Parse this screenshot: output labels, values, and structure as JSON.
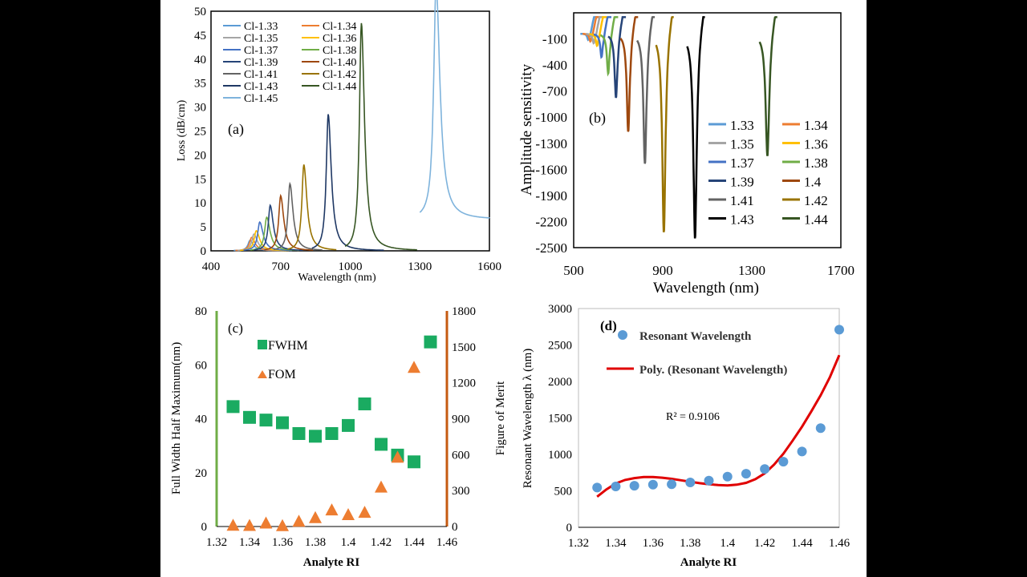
{
  "chart_data": [
    {
      "panel": "(a)",
      "type": "line",
      "xlabel": "Wavelength (nm)",
      "ylabel": "Loss (dB/cm)",
      "xlim": [
        400,
        1600
      ],
      "ylim": [
        0,
        50
      ],
      "xticks": [
        400,
        700,
        1000,
        1300,
        1600
      ],
      "yticks": [
        0,
        5,
        10,
        15,
        20,
        25,
        30,
        35,
        40,
        45,
        50
      ],
      "legend_position": "top-left",
      "series": [
        {
          "name": "Cl-1.33",
          "color": "#5b9bd5",
          "peak_x": 568,
          "peak_y": 2.2,
          "width": 22
        },
        {
          "name": "Cl-1.34",
          "color": "#ed7d31",
          "peak_x": 575,
          "peak_y": 2.8,
          "width": 22
        },
        {
          "name": "Cl-1.35",
          "color": "#a5a5a5",
          "peak_x": 585,
          "peak_y": 3.5,
          "width": 22
        },
        {
          "name": "Cl-1.36",
          "color": "#ffc000",
          "peak_x": 595,
          "peak_y": 4.2,
          "width": 22
        },
        {
          "name": "Cl-1.37",
          "color": "#4472c4",
          "peak_x": 610,
          "peak_y": 6,
          "width": 22
        },
        {
          "name": "Cl-1.38",
          "color": "#70ad47",
          "peak_x": 640,
          "peak_y": 7,
          "width": 22
        },
        {
          "name": "Cl-1.39",
          "color": "#264478",
          "peak_x": 655,
          "peak_y": 9.5,
          "width": 20
        },
        {
          "name": "Cl-1.40",
          "color": "#9e480e",
          "peak_x": 700,
          "peak_y": 11.5,
          "width": 20
        },
        {
          "name": "Cl-1.41",
          "color": "#636363",
          "peak_x": 740,
          "peak_y": 14,
          "width": 20
        },
        {
          "name": "Cl-1.42",
          "color": "#997300",
          "peak_x": 800,
          "peak_y": 18,
          "width": 20
        },
        {
          "name": "Cl-1.43",
          "color": "#1f3864",
          "peak_x": 905,
          "peak_y": 28.5,
          "width": 20
        },
        {
          "name": "Cl-1.44",
          "color": "#375623",
          "peak_x": 1048,
          "peak_y": 47.5,
          "width": 20
        },
        {
          "name": "Cl-1.45",
          "color": "#7eb3dc",
          "peak_x": 1370,
          "peak_y": 49,
          "width": 25
        }
      ]
    },
    {
      "panel": "(b)",
      "type": "line",
      "xlabel": "Wavelength (nm)",
      "ylabel": "Amplitude sensitivity",
      "xlim": [
        500,
        1700
      ],
      "ylim": [
        -2500,
        200
      ],
      "xticks": [
        500,
        900,
        1300,
        1700
      ],
      "yticks": [
        -100,
        -400,
        -700,
        -1000,
        -1300,
        -1600,
        -1900,
        -2200,
        -2500
      ],
      "legend_position": "bottom-right",
      "series": [
        {
          "name": "1.33",
          "color": "#5b9bd5",
          "dip_x": 565,
          "dip_y": -70
        },
        {
          "name": "1.34",
          "color": "#ed7d31",
          "dip_x": 575,
          "dip_y": -90
        },
        {
          "name": "1.35",
          "color": "#a5a5a5",
          "dip_x": 590,
          "dip_y": -110
        },
        {
          "name": "1.36",
          "color": "#ffc000",
          "dip_x": 605,
          "dip_y": -140
        },
        {
          "name": "1.37",
          "color": "#4472c4",
          "dip_x": 625,
          "dip_y": -270
        },
        {
          "name": "1.38",
          "color": "#70ad47",
          "dip_x": 655,
          "dip_y": -460
        },
        {
          "name": "1.39",
          "color": "#264478",
          "dip_x": 690,
          "dip_y": -740
        },
        {
          "name": "1.4",
          "color": "#9e480e",
          "dip_x": 745,
          "dip_y": -1130
        },
        {
          "name": "1.41",
          "color": "#636363",
          "dip_x": 820,
          "dip_y": -1500
        },
        {
          "name": "1.42",
          "color": "#997300",
          "dip_x": 905,
          "dip_y": -2290
        },
        {
          "name": "1.43",
          "color": "#000000",
          "dip_x": 1045,
          "dip_y": -2360
        },
        {
          "name": "1.44",
          "color": "#375623",
          "dip_x": 1370,
          "dip_y": -1410
        }
      ]
    },
    {
      "panel": "(c)",
      "type": "scatter",
      "xlabel": "Analyte RI",
      "ylabel": "Full Width Half Maximum(nm)",
      "ylabel_right": "Figure of Merit",
      "xlim": [
        1.32,
        1.46
      ],
      "ylim": [
        0,
        80
      ],
      "ylim_right": [
        0,
        1800
      ],
      "xticks": [
        1.32,
        1.34,
        1.36,
        1.38,
        1.4,
        1.42,
        1.44,
        1.46
      ],
      "yticks": [
        0,
        20,
        40,
        60,
        80
      ],
      "yticks_right": [
        0,
        300,
        600,
        900,
        1200,
        1500,
        1800
      ],
      "series": [
        {
          "name": "FWHM",
          "color": "#1aab61",
          "axis": "left",
          "x": [
            1.33,
            1.34,
            1.35,
            1.36,
            1.37,
            1.38,
            1.39,
            1.4,
            1.41,
            1.42,
            1.43,
            1.44,
            1.45
          ],
          "values": [
            44.5,
            40.5,
            39.5,
            38.5,
            34.5,
            33.5,
            34.5,
            37.5,
            45.5,
            30.5,
            26.5,
            24,
            68.5
          ]
        },
        {
          "name": "FOM",
          "color": "#ed7d31",
          "axis": "right",
          "x": [
            1.33,
            1.34,
            1.35,
            1.36,
            1.37,
            1.38,
            1.39,
            1.4,
            1.41,
            1.42,
            1.43,
            1.44
          ],
          "values": [
            12,
            10,
            30,
            8,
            45,
            75,
            140,
            100,
            120,
            330,
            580,
            1330
          ]
        }
      ]
    },
    {
      "panel": "(d)",
      "type": "scatter",
      "xlabel": "Analyte RI",
      "ylabel": "Resonant Wavelength λ (nm)",
      "xlim": [
        1.32,
        1.46
      ],
      "ylim": [
        0,
        3000
      ],
      "xticks": [
        1.32,
        1.34,
        1.36,
        1.38,
        1.4,
        1.42,
        1.44,
        1.46
      ],
      "yticks": [
        0,
        500,
        1000,
        1500,
        2000,
        2500,
        3000
      ],
      "annotation": "R² = 0.9106",
      "series": [
        {
          "name": "Resonant Wavelength",
          "color": "#5b9bd5",
          "x": [
            1.33,
            1.34,
            1.35,
            1.36,
            1.37,
            1.38,
            1.39,
            1.4,
            1.41,
            1.42,
            1.43,
            1.44,
            1.45,
            1.46
          ],
          "values": [
            545,
            560,
            570,
            585,
            590,
            615,
            640,
            695,
            735,
            800,
            900,
            1040,
            1360,
            2710
          ]
        },
        {
          "name": "Poly. (Resonant Wavelength)",
          "color": "#e00000",
          "type": "line",
          "x": [
            1.33,
            1.335,
            1.34,
            1.345,
            1.35,
            1.355,
            1.36,
            1.365,
            1.37,
            1.375,
            1.38,
            1.385,
            1.39,
            1.395,
            1.4,
            1.405,
            1.41,
            1.415,
            1.42,
            1.425,
            1.43,
            1.435,
            1.44,
            1.445,
            1.45,
            1.455,
            1.46
          ],
          "values": [
            420,
            520,
            600,
            650,
            675,
            690,
            690,
            680,
            665,
            645,
            625,
            605,
            590,
            580,
            575,
            585,
            610,
            660,
            740,
            860,
            1010,
            1190,
            1380,
            1590,
            1810,
            2060,
            2360
          ]
        }
      ]
    }
  ]
}
